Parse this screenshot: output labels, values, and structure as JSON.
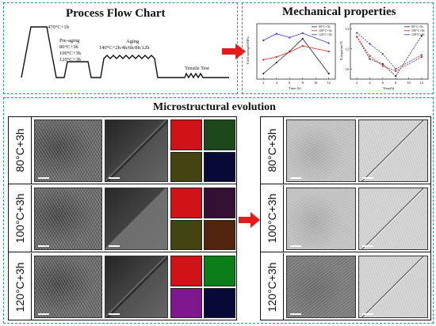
{
  "process": {
    "title": "Process Flow Chart",
    "solution": "470°C+1h",
    "preaging_title": "Pre-aging",
    "preaging_conditions": [
      "80°C+3h",
      "100°C+3h",
      "120°C+3h"
    ],
    "aging_title": "Aging",
    "aging_conditions": "140°C+2h/4h/6h/8h/12h",
    "tensile": "Tensile Test"
  },
  "mechanical": {
    "title": "Mechanical properties",
    "legend": [
      "80°C+3h",
      "100°C+3h",
      "120°C+3h"
    ],
    "colors": {
      "80C": "#222222",
      "100C": "#e02020",
      "120C": "#2e3fd6"
    }
  },
  "chart_data": [
    {
      "type": "line",
      "title": "",
      "xlabel": "Time (h)",
      "ylabel": "Yield strength/MPa",
      "x": [
        2,
        4,
        6,
        8,
        12
      ],
      "xticks": [
        2,
        4,
        6,
        8,
        10,
        12
      ],
      "ylim": [
        0,
        10
      ],
      "legend_position": "top-right",
      "series": [
        {
          "name": "80°C+3h",
          "color": "#222222",
          "values": [
            1.0,
            3.0,
            5.0,
            7.3,
            1.0
          ]
        },
        {
          "name": "100°C+3h",
          "color": "#e02020",
          "values": [
            3.5,
            4.0,
            4.9,
            6.0,
            5.0
          ]
        },
        {
          "name": "120°C+3h",
          "color": "#2e3fd6",
          "values": [
            7.0,
            8.2,
            7.5,
            8.3,
            6.5
          ]
        }
      ]
    },
    {
      "type": "line",
      "title": "",
      "xlabel": "Time(h)",
      "ylabel": "Elongation/%",
      "x": [
        2,
        4,
        6,
        8,
        12
      ],
      "xticks": [
        2,
        4,
        6,
        8,
        10,
        12
      ],
      "yticks": [
        10,
        12,
        14
      ],
      "ylim": [
        9,
        14.5
      ],
      "legend_position": "top-right",
      "series": [
        {
          "name": "80°C+3h",
          "color": "#222222",
          "values": [
            13.2,
            11.0,
            10.5,
            9.3,
            13.3
          ]
        },
        {
          "name": "100°C+3h",
          "color": "#e02020",
          "values": [
            13.2,
            11.3,
            10.3,
            9.8,
            11.2
          ]
        },
        {
          "name": "120°C+3h",
          "color": "#2e3fd6",
          "values": [
            13.6,
            12.5,
            11.5,
            10.0,
            11.4
          ]
        }
      ]
    }
  ],
  "micro": {
    "title": "Microstructural evolution",
    "rows": [
      "80°C+3h",
      "100°C+3h",
      "120°C+3h"
    ],
    "edx_colors": [
      [
        "#e3151a",
        "#1f4f1f",
        "#4a4a14",
        "#0a0a3c"
      ],
      [
        "#e3151a",
        "#3a123a",
        "#4a4a14",
        "#5a2a10"
      ],
      [
        "#e3151a",
        "#0c8a1c",
        "#8a1a9a",
        "#0a0a3c"
      ]
    ]
  },
  "arrow_color": "#e31b1b"
}
